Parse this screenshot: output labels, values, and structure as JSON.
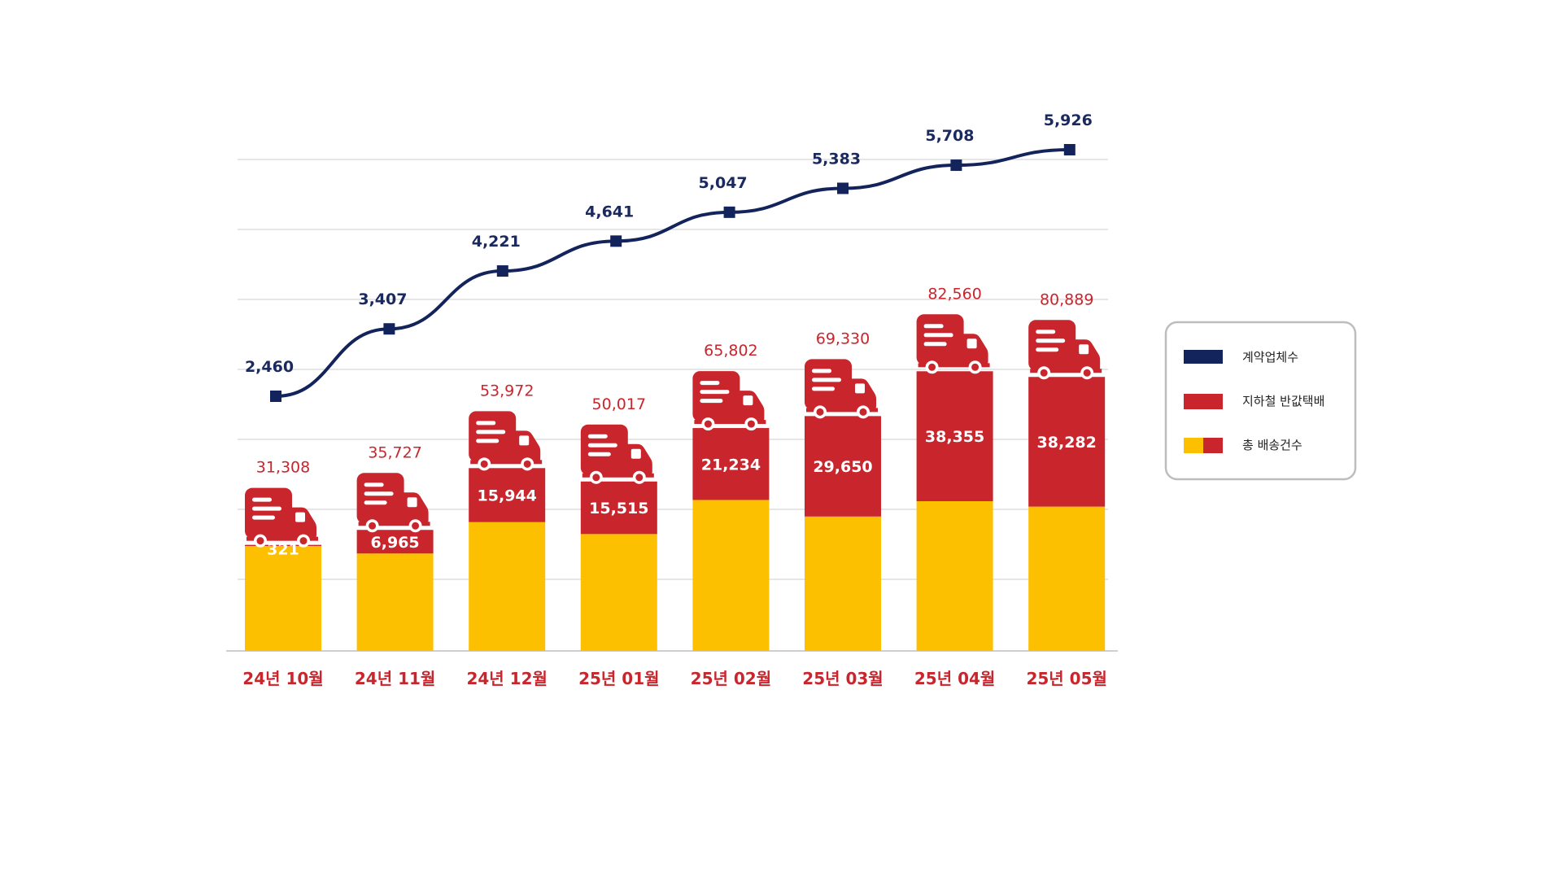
{
  "colors": {
    "total_bar": "#fcc000",
    "subway_bar": "#c9252c",
    "firms_line": "#13235b",
    "category_text": "#c9252c",
    "legend_border": "#bdbdbd",
    "gridline": "#e6e6e6"
  },
  "legend": {
    "items": [
      {
        "label": "계약업체수",
        "swatch": "navy-bar"
      },
      {
        "label": "지하철 반값택배",
        "swatch": "red-bar"
      },
      {
        "label": "총 배송건수",
        "swatch": "yellow-red-bar"
      }
    ]
  },
  "chart_data": {
    "type": "bar",
    "title": "",
    "xlabel": "",
    "ylabel": "",
    "categories": [
      "24년 10월",
      "24년 11월",
      "24년 12월",
      "25년 01월",
      "25년 02월",
      "25년 03월",
      "25년 04월",
      "25년 05월"
    ],
    "series": [
      {
        "name": "총 배송건수",
        "kind": "bar",
        "values": [
          31308,
          35727,
          53972,
          50017,
          65802,
          69330,
          82560,
          80889
        ]
      },
      {
        "name": "지하철 반값택배",
        "kind": "bar",
        "values": [
          321,
          6965,
          15944,
          15515,
          21234,
          29650,
          38355,
          38282
        ]
      },
      {
        "name": "계약업체수",
        "kind": "line",
        "values": [
          2460,
          3407,
          4221,
          4641,
          5047,
          5383,
          5708,
          5926
        ]
      }
    ],
    "icon": "delivery-truck-icon",
    "grid": true,
    "legend_position": "right"
  }
}
